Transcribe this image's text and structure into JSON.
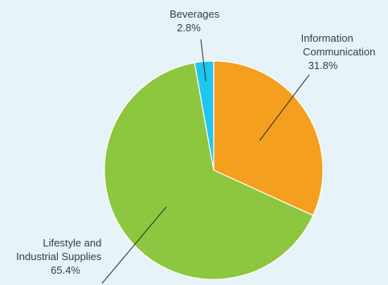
{
  "chart_data": {
    "type": "pie",
    "title": "",
    "slices": [
      {
        "label_lines": [
          "Information",
          "Communication"
        ],
        "value": 31.8,
        "value_text": "31.8%",
        "color": "#f59f1e"
      },
      {
        "label_lines": [
          "Lifestyle and",
          "Industrial Supplies"
        ],
        "value": 65.4,
        "value_text": "65.4%",
        "color": "#8dc63f"
      },
      {
        "label_lines": [
          "Beverages"
        ],
        "value": 2.8,
        "value_text": "2.8%",
        "color": "#1ec6f0"
      }
    ],
    "start_angle": "12 o'clock",
    "direction": "clockwise"
  },
  "colors": {
    "background": "#e6f4f9",
    "slice_border": "#ffffff",
    "label_text": "#3c3c3c",
    "leader_line": "#2b2b2b"
  }
}
